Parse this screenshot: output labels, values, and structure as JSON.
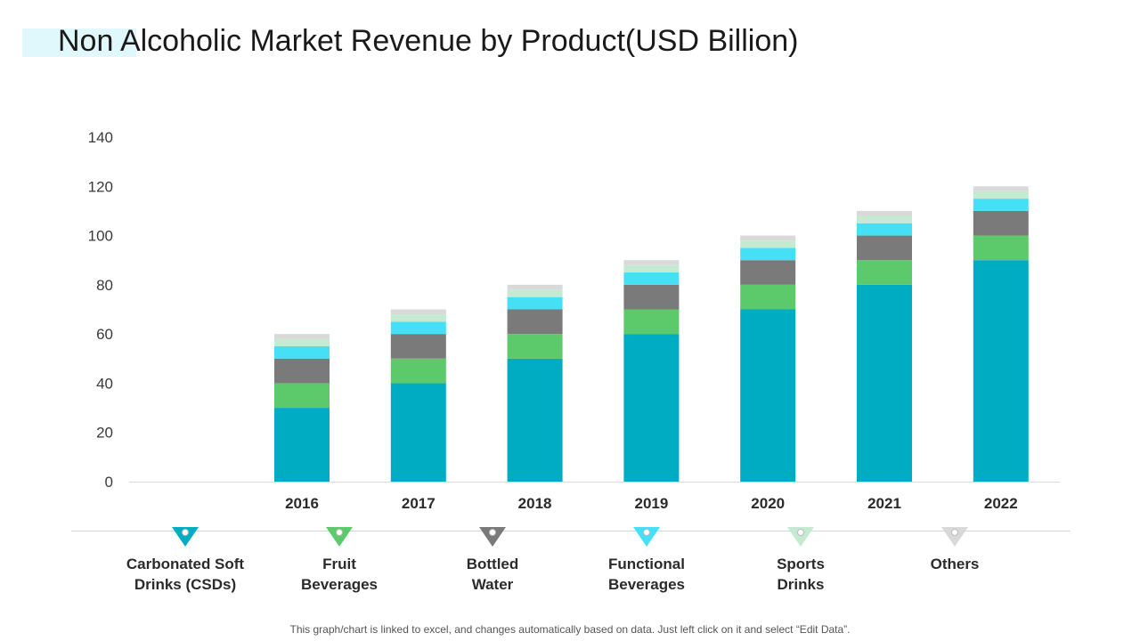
{
  "title": "Non Alcoholic Market Revenue by Product(USD Billion)",
  "footnote": "This graph/chart is linked to excel, and changes automatically based on data. Just left click on it and select “Edit Data”.",
  "legend": [
    {
      "line1": "Carbonated Soft",
      "line2": "Drinks (CSDs)",
      "color": "#00acc1"
    },
    {
      "line1": "Fruit",
      "line2": "Beverages",
      "color": "#5cc96a"
    },
    {
      "line1": "Bottled",
      "line2": "Water",
      "color": "#7a7a7a"
    },
    {
      "line1": "Functional",
      "line2": "Beverages",
      "color": "#45e0f5"
    },
    {
      "line1": "Sports",
      "line2": "Drinks",
      "color": "#c4ead2"
    },
    {
      "line1": "Others",
      "line2": "",
      "color": "#d9d9d9"
    }
  ],
  "chart_data": {
    "type": "bar",
    "stacked": true,
    "title": "Non Alcoholic Market Revenue by Product(USD Billion)",
    "xlabel": "",
    "ylabel": "",
    "ylim": [
      0,
      140
    ],
    "yticks": [
      0,
      20,
      40,
      60,
      80,
      100,
      120,
      140
    ],
    "grid": false,
    "legend_position": "bottom",
    "categories": [
      "2016",
      "2017",
      "2018",
      "2019",
      "2020",
      "2021",
      "2022"
    ],
    "series": [
      {
        "name": "Carbonated Soft Drinks (CSDs)",
        "color": "#00acc1",
        "values": [
          30,
          40,
          50,
          60,
          70,
          80,
          90
        ]
      },
      {
        "name": "Fruit Beverages",
        "color": "#5cc96a",
        "values": [
          10,
          10,
          10,
          10,
          10,
          10,
          10
        ]
      },
      {
        "name": "Bottled Water",
        "color": "#7a7a7a",
        "values": [
          10,
          10,
          10,
          10,
          10,
          10,
          10
        ]
      },
      {
        "name": "Functional Beverages",
        "color": "#45e0f5",
        "values": [
          5,
          5,
          5,
          5,
          5,
          5,
          5
        ]
      },
      {
        "name": "Sports Drinks",
        "color": "#c4ead2",
        "values": [
          3,
          3,
          3,
          3,
          3,
          3,
          3
        ]
      },
      {
        "name": "Others",
        "color": "#d9d9d9",
        "values": [
          2,
          2,
          2,
          2,
          2,
          2,
          2
        ]
      }
    ]
  }
}
